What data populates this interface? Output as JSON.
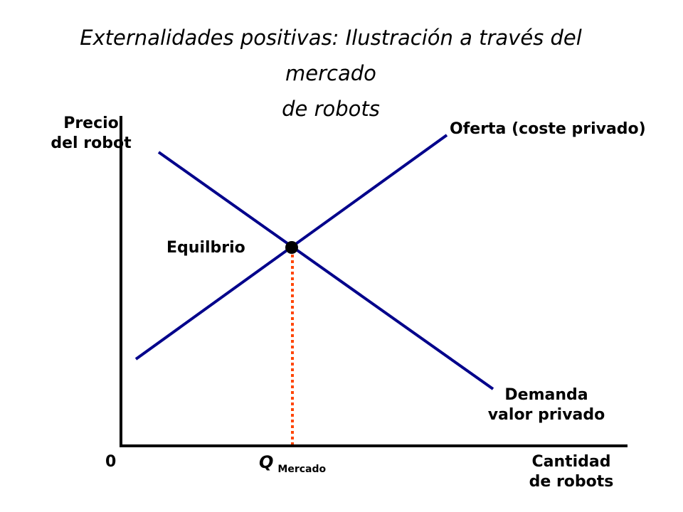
{
  "title": {
    "line1": "Externalidades positivas: Ilustración a través del mercado",
    "line2": "de robots"
  },
  "axes": {
    "y_label_line1": "Precio",
    "y_label_line2": "del robot",
    "x_label_line1": "Cantidad",
    "x_label_line2": "de robots",
    "origin": "0"
  },
  "curves": {
    "supply_label": "Oferta (coste privado)",
    "demand_label_line1": "Demanda",
    "demand_label_line2": "valor privado",
    "supply_color": "#00008B",
    "demand_color": "#00008B"
  },
  "equilibrium": {
    "label": "Equilbrio",
    "quantity_symbol": "Q",
    "quantity_subscript": "Mercado",
    "marker_color": "#000000",
    "dotted_line_color": "#FF4500"
  }
}
